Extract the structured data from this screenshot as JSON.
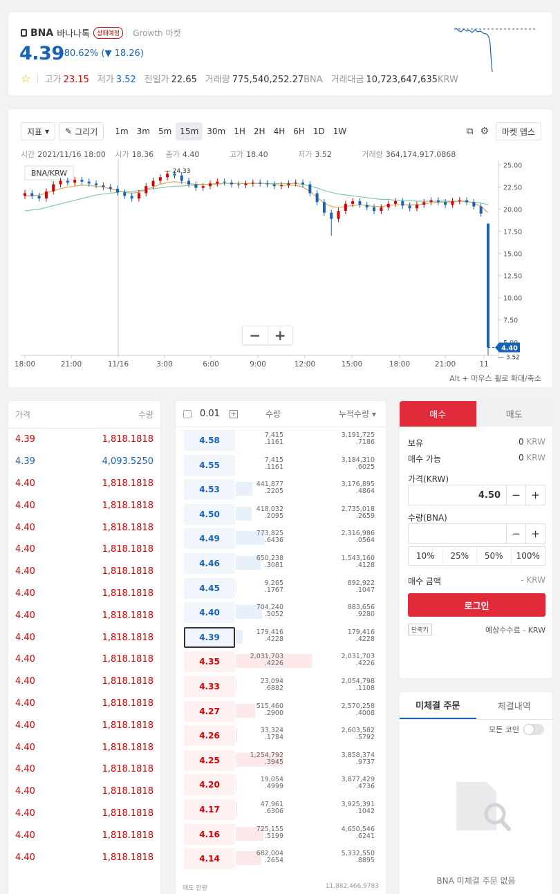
{
  "header": {
    "symbol": "BNA",
    "name": "바나나톡",
    "warning_badge": "상폐예정",
    "market": "Growth 마켓",
    "price": "4.39",
    "change_pct": "-80.62%",
    "change_abs": "▼ 18.26",
    "stats": [
      {
        "label": "고가",
        "value": "23.15",
        "color": "#d60000"
      },
      {
        "label": "저가",
        "value": "3.52",
        "color": "#1763b6"
      },
      {
        "label": "전일가",
        "value": "22.65",
        "color": "#333333"
      },
      {
        "label": "거래량",
        "value": "775,540,252.27",
        "unit": "BNA",
        "color": "#333333"
      },
      {
        "label": "거래대금",
        "value": "10,723,647,635",
        "unit": "KRW",
        "color": "#333333"
      }
    ]
  },
  "chart": {
    "indicator_btn": "지표",
    "draw_btn": "그리기",
    "intervals": [
      "1m",
      "3m",
      "5m",
      "15m",
      "30m",
      "1H",
      "2H",
      "4H",
      "6H",
      "1D",
      "1W"
    ],
    "active_interval": "15m",
    "market_depth_btn": "마켓 뎁스",
    "ohlc": {
      "time_label": "시간",
      "time": "2021/11/16 18:00",
      "open_label": "시가",
      "open": "18.36",
      "close_label": "종가",
      "close": "4.40",
      "high_label": "고가",
      "high": "18.40",
      "low_label": "저가",
      "low": "3.52",
      "vol_label": "거래량",
      "vol": "364,174,917.0868"
    },
    "pair_label": "BNA/KRW",
    "peak_label": "24.33",
    "low_label": "3.52",
    "price_tag": "4.40",
    "y_ticks": [
      "25.00",
      "22.50",
      "20.00",
      "17.50",
      "15.00",
      "12.50",
      "10.00",
      "7.50",
      "5.00"
    ],
    "x_ticks": [
      "18:00",
      "21:00",
      "11/16",
      "3:00",
      "6:00",
      "9:00",
      "12:00",
      "15:00",
      "18:00",
      "21:00",
      "11"
    ],
    "zoom_out": "−",
    "zoom_in": "+",
    "hint": "Alt + 마우스 휠로 확대/축소"
  },
  "chart_data": {
    "type": "candlestick",
    "ylim": [
      3.5,
      25.5
    ],
    "closes": [
      21.8,
      21.5,
      21.2,
      22.0,
      22.8,
      23.2,
      23.0,
      23.3,
      23.1,
      22.9,
      22.7,
      22.5,
      22.3,
      21.9,
      21.5,
      21.2,
      21.8,
      22.6,
      23.2,
      23.6,
      24.0,
      23.8,
      23.2,
      22.8,
      22.4,
      22.6,
      22.9,
      23.1,
      23.0,
      22.8,
      22.7,
      22.9,
      23.0,
      22.9,
      22.8,
      22.6,
      22.7,
      22.9,
      23.0,
      22.8,
      21.8,
      20.8,
      19.6,
      18.9,
      19.8,
      20.6,
      20.9,
      20.5,
      20.2,
      19.8,
      20.2,
      20.6,
      20.9,
      20.4,
      20.1,
      20.5,
      20.8,
      21.0,
      20.8,
      20.5,
      20.9,
      21.0,
      20.8,
      20.3,
      19.5,
      4.4
    ],
    "ma_short": [
      21.5,
      21.5,
      21.6,
      21.8,
      22.1,
      22.3,
      22.5,
      22.6,
      22.7,
      22.7,
      22.6,
      22.5,
      22.3,
      22.1,
      21.9,
      21.8,
      21.9,
      22.2,
      22.5,
      22.8,
      23.0,
      23.1,
      23.0,
      22.9,
      22.8,
      22.8,
      22.8,
      22.9,
      22.9,
      22.9,
      22.9,
      22.9,
      22.9,
      22.9,
      22.9,
      22.8,
      22.7,
      22.7,
      22.7,
      22.5,
      22.0,
      21.3,
      20.7,
      20.3,
      20.2,
      20.3,
      20.4,
      20.5,
      20.4,
      20.3,
      20.3,
      20.4,
      20.5,
      20.5,
      20.5,
      20.5,
      20.6,
      20.7,
      20.8,
      20.8,
      20.8,
      20.9,
      20.9,
      20.7,
      20.3,
      19.6
    ],
    "ma_long": [
      19.8,
      19.9,
      20.0,
      20.2,
      20.4,
      20.6,
      20.8,
      21.0,
      21.2,
      21.4,
      21.6,
      21.7,
      21.8,
      21.9,
      22.0,
      22.0,
      22.1,
      22.2,
      22.3,
      22.4,
      22.5,
      22.6,
      22.6,
      22.7,
      22.7,
      22.8,
      22.8,
      22.8,
      22.9,
      22.9,
      22.9,
      22.9,
      22.9,
      22.9,
      22.9,
      22.9,
      22.9,
      22.9,
      22.9,
      22.8,
      22.6,
      22.4,
      22.1,
      21.9,
      21.7,
      21.6,
      21.5,
      21.4,
      21.3,
      21.2,
      21.1,
      21.1,
      21.0,
      21.0,
      21.0,
      20.9,
      20.9,
      20.9,
      20.9,
      20.9,
      20.9,
      20.9,
      20.8,
      20.8,
      20.7,
      20.5
    ]
  },
  "trades": {
    "headers": [
      "가격",
      "수량"
    ],
    "rows": [
      {
        "p": "4.39",
        "q": "1,818.1818",
        "c": "#d60000"
      },
      {
        "p": "4.39",
        "q": "4,093.5250",
        "c": "#1763b6"
      },
      {
        "p": "4.40",
        "q": "1,818.1818",
        "c": "#d60000"
      },
      {
        "p": "4.40",
        "q": "1,818.1818",
        "c": "#d60000"
      },
      {
        "p": "4.40",
        "q": "1,818.1818",
        "c": "#d60000"
      },
      {
        "p": "4.40",
        "q": "1,818.1818",
        "c": "#d60000"
      },
      {
        "p": "4.40",
        "q": "1,818.1818",
        "c": "#d60000"
      },
      {
        "p": "4.40",
        "q": "1,818.1818",
        "c": "#d60000"
      },
      {
        "p": "4.40",
        "q": "1,818.1818",
        "c": "#d60000"
      },
      {
        "p": "4.40",
        "q": "1,818.1818",
        "c": "#d60000"
      },
      {
        "p": "4.40",
        "q": "1,818.1818",
        "c": "#d60000"
      },
      {
        "p": "4.40",
        "q": "1,818.1818",
        "c": "#d60000"
      },
      {
        "p": "4.40",
        "q": "1,818.1818",
        "c": "#d60000"
      },
      {
        "p": "4.40",
        "q": "1,818.1818",
        "c": "#d60000"
      },
      {
        "p": "4.40",
        "q": "1,818.1818",
        "c": "#d60000"
      },
      {
        "p": "4.40",
        "q": "1,818.1818",
        "c": "#d60000"
      },
      {
        "p": "4.40",
        "q": "1,818.1818",
        "c": "#d60000"
      },
      {
        "p": "4.40",
        "q": "1,818.1818",
        "c": "#d60000"
      },
      {
        "p": "4.40",
        "q": "1,818.1818",
        "c": "#d60000"
      },
      {
        "p": "4.40",
        "q": "1,818.1818",
        "c": "#d60000"
      }
    ]
  },
  "orderbook": {
    "tick": "0.01",
    "qty_header": "수량",
    "cum_header": "누적수량",
    "foot_left": "매도 잔량",
    "foot_right": "11,882,466.9783",
    "rows": [
      {
        "side": "ask",
        "p": "4.58",
        "q1": "7,415",
        "q2": ".1161",
        "c1": "3,191,725",
        "c2": ".7186",
        "bar": 0
      },
      {
        "side": "ask",
        "p": "4.55",
        "q1": "7,415",
        "q2": ".1161",
        "c1": "3,184,310",
        "c2": ".6025",
        "bar": 0
      },
      {
        "side": "ask",
        "p": "4.53",
        "q1": "441,877",
        "q2": ".2205",
        "c1": "3,176,895",
        "c2": ".4864",
        "bar": 0.2
      },
      {
        "side": "ask",
        "p": "4.50",
        "q1": "418,032",
        "q2": ".2095",
        "c1": "2,735,018",
        "c2": ".2659",
        "bar": 0.19
      },
      {
        "side": "ask",
        "p": "4.49",
        "q1": "773,825",
        "q2": ".6436",
        "c1": "2,316,986",
        "c2": ".0564",
        "bar": 0.35
      },
      {
        "side": "ask",
        "p": "4.46",
        "q1": "650,238",
        "q2": ".3081",
        "c1": "1,543,160",
        "c2": ".4128",
        "bar": 0.3
      },
      {
        "side": "ask",
        "p": "4.45",
        "q1": "9,265",
        "q2": ".1767",
        "c1": "892,922",
        "c2": ".1047",
        "bar": 0.01
      },
      {
        "side": "ask",
        "p": "4.40",
        "q1": "704,240",
        "q2": ".5052",
        "c1": "883,656",
        "c2": ".9280",
        "bar": 0.32
      },
      {
        "side": "ask",
        "p": "4.39",
        "q1": "179,416",
        "q2": ".4228",
        "c1": "179,416",
        "c2": ".4228",
        "bar": 0.08,
        "sel": true
      },
      {
        "side": "bid",
        "p": "4.35",
        "q1": "2,031,703",
        "q2": ".4226",
        "c1": "2,031,703",
        "c2": ".4226",
        "bar": 0.92
      },
      {
        "side": "bid",
        "p": "4.33",
        "q1": "23,094",
        "q2": ".6882",
        "c1": "2,054,798",
        "c2": ".1108",
        "bar": 0.01
      },
      {
        "side": "bid",
        "p": "4.27",
        "q1": "515,460",
        "q2": ".2900",
        "c1": "2,570,258",
        "c2": ".4008",
        "bar": 0.23
      },
      {
        "side": "bid",
        "p": "4.26",
        "q1": "33,324",
        "q2": ".1784",
        "c1": "2,603,582",
        "c2": ".5792",
        "bar": 0.02
      },
      {
        "side": "bid",
        "p": "4.25",
        "q1": "1,254,792",
        "q2": ".3945",
        "c1": "3,858,374",
        "c2": ".9737",
        "bar": 0.57
      },
      {
        "side": "bid",
        "p": "4.20",
        "q1": "19,054",
        "q2": ".4999",
        "c1": "3,877,429",
        "c2": ".4736",
        "bar": 0.01
      },
      {
        "side": "bid",
        "p": "4.17",
        "q1": "47,961",
        "q2": ".6306",
        "c1": "3,925,391",
        "c2": ".1042",
        "bar": 0.02
      },
      {
        "side": "bid",
        "p": "4.16",
        "q1": "725,155",
        "q2": ".5199",
        "c1": "4,650,546",
        "c2": ".6241",
        "bar": 0.33
      },
      {
        "side": "bid",
        "p": "4.14",
        "q1": "682,004",
        "q2": ".2654",
        "c1": "5,332,550",
        "c2": ".8895",
        "bar": 0.31
      }
    ]
  },
  "order_form": {
    "tab_buy": "매수",
    "tab_sell": "매도",
    "holding_label": "보유",
    "holding_value": "0",
    "holding_unit": "KRW",
    "avail_label": "매수 가능",
    "avail_value": "0",
    "avail_unit": "KRW",
    "price_label": "가격(KRW)",
    "price_value": "4.50",
    "qty_label": "수량(BNA)",
    "qty_value": "",
    "minus": "−",
    "plus": "+",
    "pcts": [
      "10%",
      "25%",
      "50%",
      "100%"
    ],
    "amount_label": "매수 금액",
    "amount_value": "- KRW",
    "login_btn": "로그인",
    "shortcut_btn": "단축키",
    "fee_text": "예상수수료 - KRW"
  },
  "open_orders": {
    "tab_open": "미체결 주문",
    "tab_filled": "체결내역",
    "toggle_label": "모든 코인",
    "empty_text": "BNA 미체결 주문 없음"
  },
  "colors": {
    "up": "#d60000",
    "down": "#1763b6",
    "buy": "#e22b3a"
  }
}
